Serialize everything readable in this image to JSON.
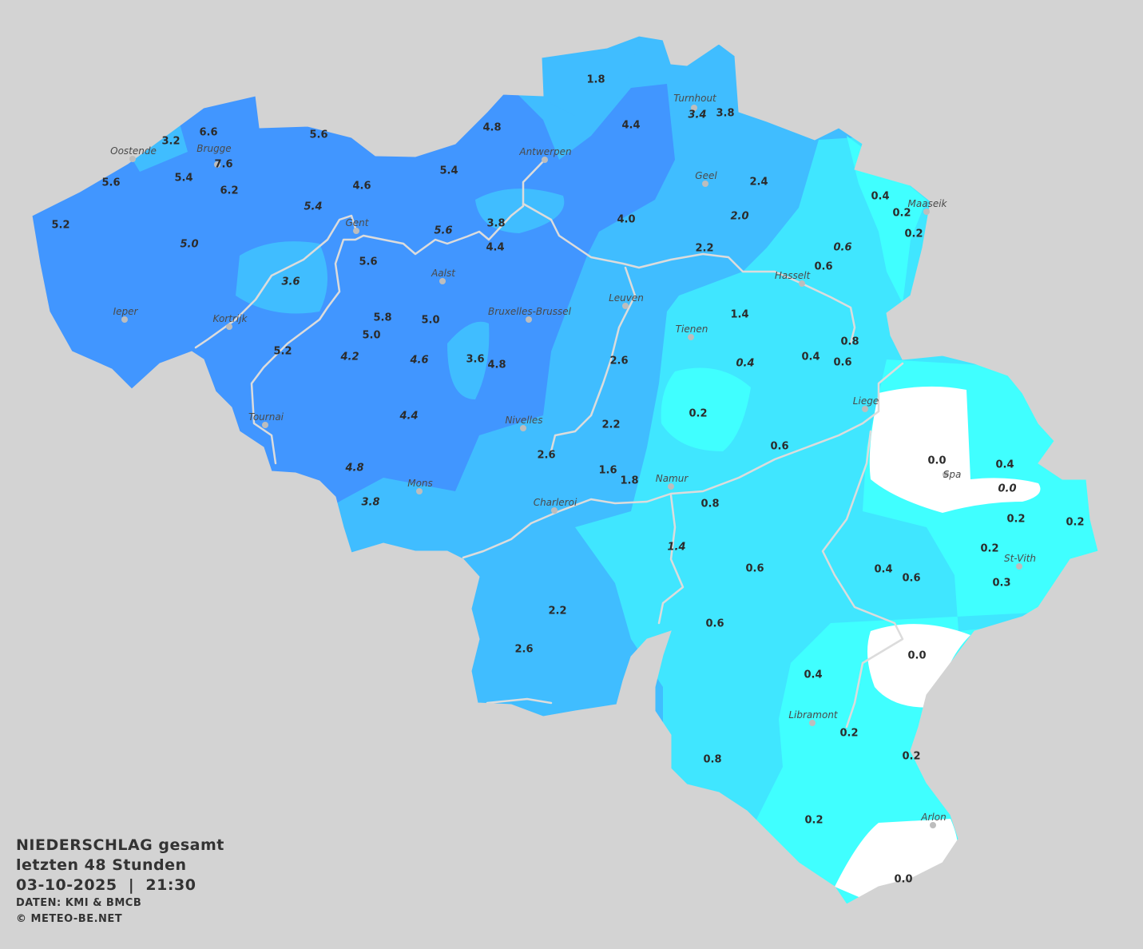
{
  "colors": {
    "background": "#d3d3d3",
    "level_high": "#4196ff",
    "level_mid": "#40bdff",
    "level_low": "#40e6ff",
    "level_lowest": "#40ffff",
    "level_zero": "#ffffff",
    "river": "#dcdcdc",
    "text": "#2b2b2b"
  },
  "legend": {
    "title": "NIEDERSCHLAG gesamt",
    "period": "letzten 48 Stunden",
    "datetime": "03-10-2025  |  21:30",
    "source": "DATEN: KMI & BMCB",
    "copyright": "© METEO-BE.NET"
  },
  "cities": [
    "Oostende",
    "Brugge",
    "Antwerpen",
    "Turnhout",
    "Geel",
    "Maaseik",
    "Gent",
    "Aalst",
    "Hasselt",
    "Leuven",
    "Ieper",
    "Kortrijk",
    "Bruxelles-Brussel",
    "Tienen",
    "Tournai",
    "Nivelles",
    "Liege",
    "Spa",
    "Mons",
    "Namur",
    "Charleroi",
    "St-Vith",
    "Libramont",
    "Arlon"
  ],
  "precip_values_mm": [
    "3.2",
    "6.6",
    "7.6",
    "5.6",
    "5.4",
    "6.2",
    "5.2",
    "5.0",
    "5.6",
    "4.6",
    "5.4",
    "5.4",
    "4.8",
    "1.8",
    "4.4",
    "3.4",
    "3.8",
    "2.4",
    "2.0",
    "4.0",
    "3.8",
    "4.4",
    "5.6",
    "5.6",
    "3.6",
    "5.8",
    "5.0",
    "5.0",
    "5.2",
    "4.2",
    "4.6",
    "3.6",
    "4.8",
    "4.4",
    "4.8",
    "3.8",
    "2.2",
    "0.6",
    "0.6",
    "0.4",
    "0.2",
    "0.2",
    "1.4",
    "0.4",
    "0.4",
    "0.6",
    "0.8",
    "2.6",
    "0.2",
    "2.2",
    "2.6",
    "1.6",
    "1.8",
    "0.6",
    "0.0",
    "0.4",
    "0.0",
    "0.2",
    "0.2",
    "0.2",
    "0.3",
    "0.4",
    "0.6",
    "0.8",
    "1.4",
    "0.6",
    "0.6",
    "2.2",
    "2.6",
    "0.0",
    "0.4",
    "0.2",
    "0.2",
    "0.8",
    "0.2",
    "0.0"
  ]
}
